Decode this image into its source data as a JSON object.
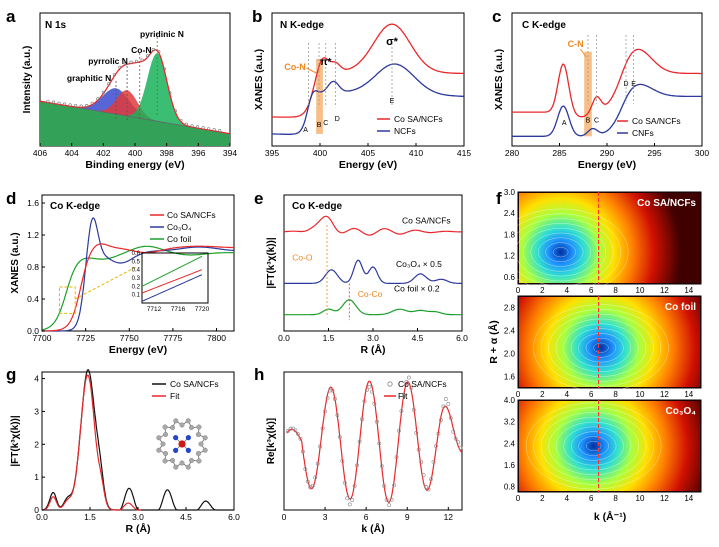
{
  "figure": {
    "colors": {
      "red": "#e8282b",
      "blue": "#2b3a9c",
      "green": "#1aa02a",
      "black": "#111111",
      "orange": "#f08a24",
      "gray": "#888888"
    }
  },
  "chart_data": [
    {
      "id": "a",
      "type": "line",
      "panel_label": "a",
      "title": "N 1s",
      "xlabel": "Binding energy (eV)",
      "ylabel": "Intensity (a.u.)",
      "xlim": [
        406,
        394
      ],
      "x_ticks": [
        406,
        404,
        402,
        400,
        398,
        396,
        394
      ],
      "x_tick_labels": [
        "406",
        "404",
        "402",
        "400",
        "398",
        "396",
        "394"
      ],
      "peaks": [
        {
          "name": "graphitic N",
          "center": 401.2,
          "color": "#2b3a9c"
        },
        {
          "name": "pyrrolic N",
          "center": 400.5,
          "color": "#e8282b"
        },
        {
          "name": "Co-N",
          "center": 399.7,
          "color": "#e8282b"
        },
        {
          "name": "pyridinic N",
          "center": 398.6,
          "color": "#1aa02a"
        }
      ],
      "labels": [
        "pyridinic N",
        "Co-N",
        "pyrrolic N",
        "graphitic N"
      ]
    },
    {
      "id": "b",
      "type": "line",
      "panel_label": "b",
      "title": "N K-edge",
      "xlabel": "Energy (eV)",
      "ylabel": "XANES (a.u.)",
      "xlim": [
        395,
        415
      ],
      "x_ticks": [
        395,
        400,
        405,
        410,
        415
      ],
      "x_tick_labels": [
        "395",
        "400",
        "405",
        "410",
        "415"
      ],
      "series": [
        {
          "name": "Co SA/NCFs",
          "color": "#e8282b"
        },
        {
          "name": "NCFs",
          "color": "#2b3a9c"
        }
      ],
      "annotations": [
        "π*",
        "σ*",
        "Co-N",
        "A",
        "B",
        "C",
        "D",
        "E"
      ]
    },
    {
      "id": "c",
      "type": "line",
      "panel_label": "c",
      "title": "C K-edge",
      "xlabel": "Energy (eV)",
      "ylabel": "XANES (a.u.)",
      "xlim": [
        280,
        300
      ],
      "x_ticks": [
        280,
        285,
        290,
        295,
        300
      ],
      "x_tick_labels": [
        "280",
        "285",
        "290",
        "295",
        "300"
      ],
      "series": [
        {
          "name": "Co SA/NCFs",
          "color": "#e8282b"
        },
        {
          "name": "CNFs",
          "color": "#2b3a9c"
        }
      ],
      "annotations": [
        "C-N",
        "A",
        "B",
        "C",
        "D",
        "E"
      ]
    },
    {
      "id": "d",
      "type": "line",
      "panel_label": "d",
      "title": "Co K-edge",
      "xlabel": "Energy (eV)",
      "ylabel": "XANES (a.u.)",
      "xlim": [
        7700,
        7810
      ],
      "ylim": [
        0,
        1.7
      ],
      "x_ticks": [
        7700,
        7725,
        7750,
        7775,
        7800
      ],
      "x_tick_labels": [
        "7700",
        "7725",
        "7750",
        "7775",
        "7800"
      ],
      "y_ticks": [
        0,
        0.4,
        0.8,
        1.2,
        1.6
      ],
      "y_tick_labels": [
        "0.0",
        "0.4",
        "0.8",
        "1.2",
        "1.6"
      ],
      "series": [
        {
          "name": "Co SA/NCFs",
          "color": "#e8282b"
        },
        {
          "name": "Co3O4",
          "color": "#2b3a9c"
        },
        {
          "name": "Co foil",
          "color": "#1aa02a"
        }
      ],
      "legend": [
        "Co SA/NCFs",
        "Co₃O₄",
        "Co foil"
      ],
      "inset": {
        "xlim": [
          7710,
          7721
        ],
        "ylim": [
          0,
          0.6
        ],
        "x_tick_labels": [
          "7712",
          "7716",
          "7720"
        ],
        "y_tick_labels": [
          "0.1",
          "0.2",
          "0.3",
          "0.4",
          "0.5",
          "0.6"
        ]
      }
    },
    {
      "id": "e",
      "type": "line",
      "panel_label": "e",
      "title": "Co K-edge",
      "xlabel": "R (Å)",
      "ylabel": "|FT(k³χ(k))|",
      "xlim": [
        0,
        6
      ],
      "x_ticks": [
        0,
        1.5,
        3.0,
        4.5,
        6.0
      ],
      "x_tick_labels": [
        "0.0",
        "1.5",
        "3.0",
        "4.5",
        "6.0"
      ],
      "series": [
        {
          "name": "Co SA/NCFs",
          "color": "#e8282b"
        },
        {
          "name": "Co3O4 × 0.5",
          "color": "#2b3a9c"
        },
        {
          "name": "Co foil × 0.2",
          "color": "#1aa02a"
        }
      ],
      "labels": [
        "Co SA/NCFs",
        "Co₃O₄ × 0.5",
        "Co foil × 0.2"
      ],
      "annotations": [
        "Co-O",
        "Co-Co"
      ]
    },
    {
      "id": "f",
      "type": "heatmap",
      "panel_label": "f",
      "xlabel": "k (Å⁻¹)",
      "ylabel": "R + α (Å)",
      "x_ticks": [
        0,
        2,
        4,
        6,
        8,
        10,
        12,
        14
      ],
      "x_tick_labels": [
        "0",
        "2",
        "4",
        "6",
        "8",
        "10",
        "12",
        "14"
      ],
      "subplots": [
        {
          "title": "Co SA/NCFs",
          "ylim": [
            0.4,
            3.0
          ],
          "y_tick_labels": [
            "3.0",
            "2.4",
            "1.8",
            "1.2",
            "0.6"
          ],
          "peak": {
            "k": 3.5,
            "R": 1.3
          }
        },
        {
          "title": "Co foil",
          "ylim": [
            1.4,
            3.0
          ],
          "y_tick_labels": [
            "2.8",
            "2.4",
            "2.0",
            "1.6"
          ],
          "peak": {
            "k": 6.8,
            "R": 2.1
          }
        },
        {
          "title": "Co₃O₄",
          "ylim": [
            0.6,
            4.0
          ],
          "y_tick_labels": [
            "4.0",
            "3.2",
            "2.4",
            "1.6",
            "0.8"
          ],
          "peak": {
            "k": 6.2,
            "R": 2.3
          }
        }
      ]
    },
    {
      "id": "g",
      "type": "line",
      "panel_label": "g",
      "xlabel": "R (Å)",
      "ylabel": "|FT(k³χ(k))|",
      "xlim": [
        0,
        6
      ],
      "ylim": [
        0,
        4.2
      ],
      "x_ticks": [
        0,
        1.5,
        3.0,
        4.5,
        6.0
      ],
      "x_tick_labels": [
        "0.0",
        "1.5",
        "3.0",
        "4.5",
        "6.0"
      ],
      "y_ticks": [
        0,
        1,
        2,
        3,
        4
      ],
      "y_tick_labels": [
        "0",
        "1",
        "2",
        "3",
        "4"
      ],
      "series": [
        {
          "name": "Co SA/NCFs",
          "color": "#111111"
        },
        {
          "name": "Fit",
          "color": "#e8282b"
        }
      ],
      "legend": [
        "Co SA/NCFs",
        "Fit"
      ]
    },
    {
      "id": "h",
      "type": "line",
      "panel_label": "h",
      "xlabel": "k (Å)",
      "ylabel": "Re[k³χ(k)]",
      "xlim": [
        0,
        13
      ],
      "x_ticks": [
        0,
        3,
        6,
        9,
        12
      ],
      "x_tick_labels": [
        "0",
        "3",
        "6",
        "9",
        "12"
      ],
      "series": [
        {
          "name": "Co SA/NCFs",
          "color": "#888888",
          "marker": "open-circle"
        },
        {
          "name": "Fit",
          "color": "#e8282b"
        }
      ],
      "legend": [
        "Co SA/NCFs",
        "Fit"
      ]
    }
  ]
}
